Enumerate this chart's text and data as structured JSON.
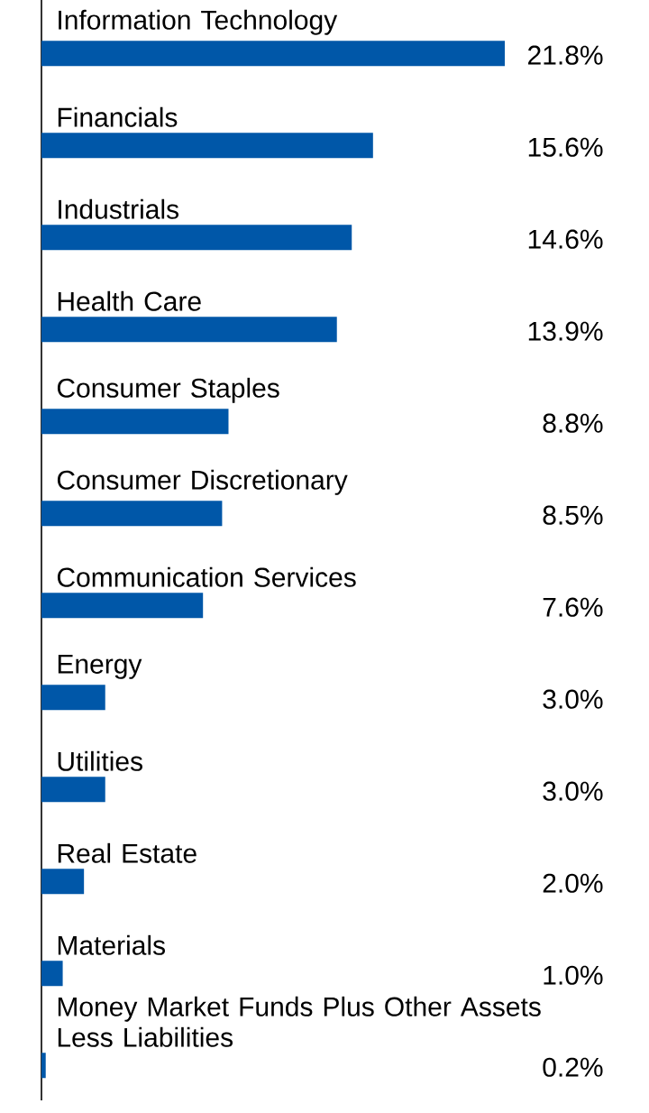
{
  "chart_data": {
    "type": "bar",
    "orientation": "horizontal",
    "categories": [
      "Information Technology",
      "Financials",
      "Industrials",
      "Health Care",
      "Consumer Staples",
      "Consumer Discretionary",
      "Communication Services",
      "Energy",
      "Utilities",
      "Real Estate",
      "Materials",
      "Money Market Funds Plus Other Assets Less Liabilities"
    ],
    "values": [
      21.8,
      15.6,
      14.6,
      13.9,
      8.8,
      8.5,
      7.6,
      3.0,
      3.0,
      2.0,
      1.0,
      0.2
    ],
    "value_labels": [
      "21.8%",
      "15.6%",
      "14.6%",
      "13.9%",
      "8.8%",
      "8.5%",
      "7.6%",
      "3.0%",
      "3.0%",
      "2.0%",
      "1.0%",
      "0.2%"
    ],
    "color": "#0057a8"
  }
}
